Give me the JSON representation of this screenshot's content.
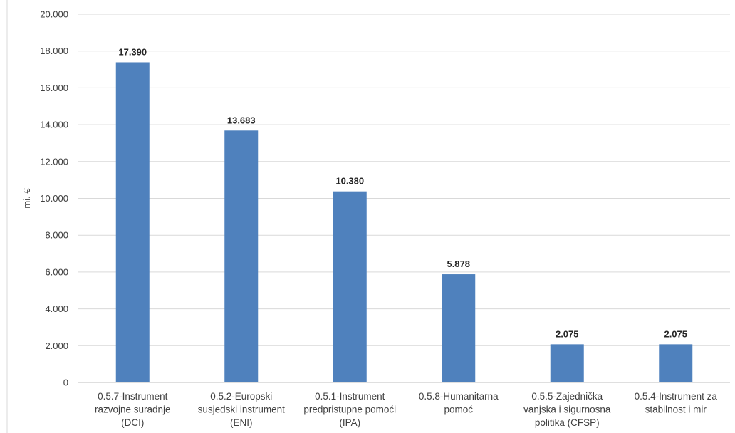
{
  "chart_data": {
    "type": "bar",
    "title": "",
    "xlabel": "",
    "ylabel": "mi. €",
    "ylim": [
      0,
      20000
    ],
    "ytick_step": 2000,
    "ytick_labels": [
      "0",
      "2.000",
      "4.000",
      "6.000",
      "8.000",
      "10.000",
      "12.000",
      "14.000",
      "16.000",
      "18.000",
      "20.000"
    ],
    "grid": true,
    "legend": "none",
    "bar_color": "#4f81bd",
    "grid_color": "#d9d9d9",
    "categories": [
      [
        "0.5.7-Instrument",
        "razvojne suradnje",
        "(DCI)"
      ],
      [
        "0.5.2-Europski",
        "susjedski instrument",
        "(ENI)"
      ],
      [
        "0.5.1-Instrument",
        "predpristupne pomoći",
        "(IPA)"
      ],
      [
        "0.5.8-Humanitarna",
        "pomoć"
      ],
      [
        "0.5.5-Zajednička",
        "vanjska i sigurnosna",
        "politika (CFSP)"
      ],
      [
        "0.5.4-Instrument za",
        "stabilnost i mir"
      ]
    ],
    "values": [
      17390,
      13683,
      10380,
      5878,
      2075,
      2075
    ],
    "data_labels": [
      "17.390",
      "13.683",
      "10.380",
      "5.878",
      "2.075",
      "2.075"
    ]
  }
}
